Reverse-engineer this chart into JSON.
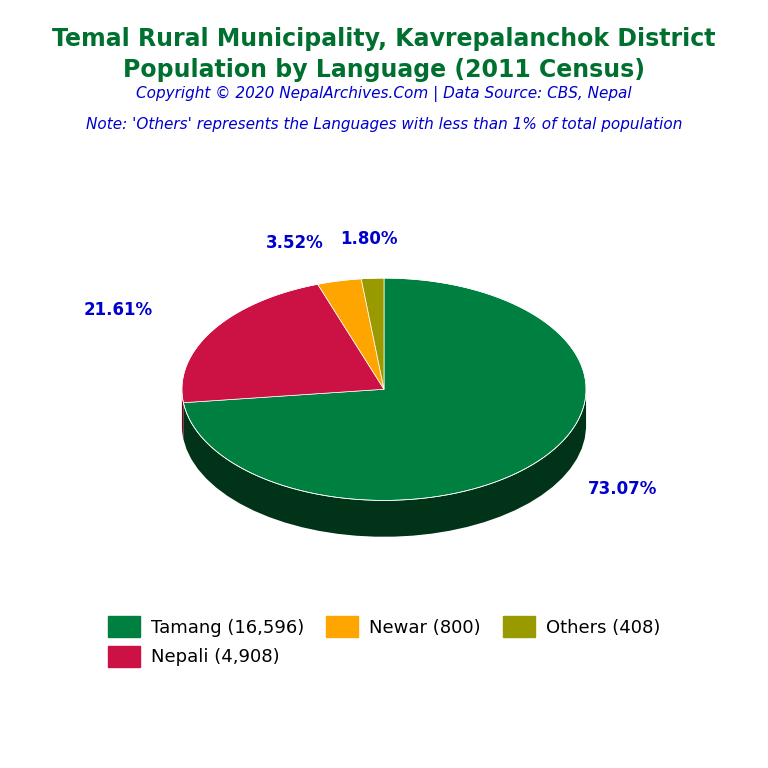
{
  "title_line1": "Temal Rural Municipality, Kavrepalanchok District",
  "title_line2": "Population by Language (2011 Census)",
  "title_color": "#007030",
  "copyright_text": "Copyright © 2020 NepalArchives.Com | Data Source: CBS, Nepal",
  "copyright_color": "#0000CD",
  "note_text": "Note: 'Others' represents the Languages with less than 1% of total population",
  "note_color": "#0000CD",
  "labels": [
    "Tamang",
    "Nepali",
    "Newar",
    "Others"
  ],
  "values": [
    16596,
    4908,
    800,
    408
  ],
  "percentages": [
    "73.07%",
    "21.61%",
    "3.52%",
    "1.80%"
  ],
  "colors": [
    "#008040",
    "#CC1144",
    "#FFA500",
    "#999900"
  ],
  "shadow_colors": [
    "#003318",
    "#770022",
    "#885500",
    "#444400"
  ],
  "legend_labels": [
    "Tamang (16,596)",
    "Nepali (4,908)",
    "Newar (800)",
    "Others (408)"
  ],
  "legend_color": "#000000",
  "background_color": "#FFFFFF",
  "pct_color": "#0000CC",
  "pct_fontsize": 12,
  "title_fontsize": 17,
  "copyright_fontsize": 11,
  "note_fontsize": 11
}
